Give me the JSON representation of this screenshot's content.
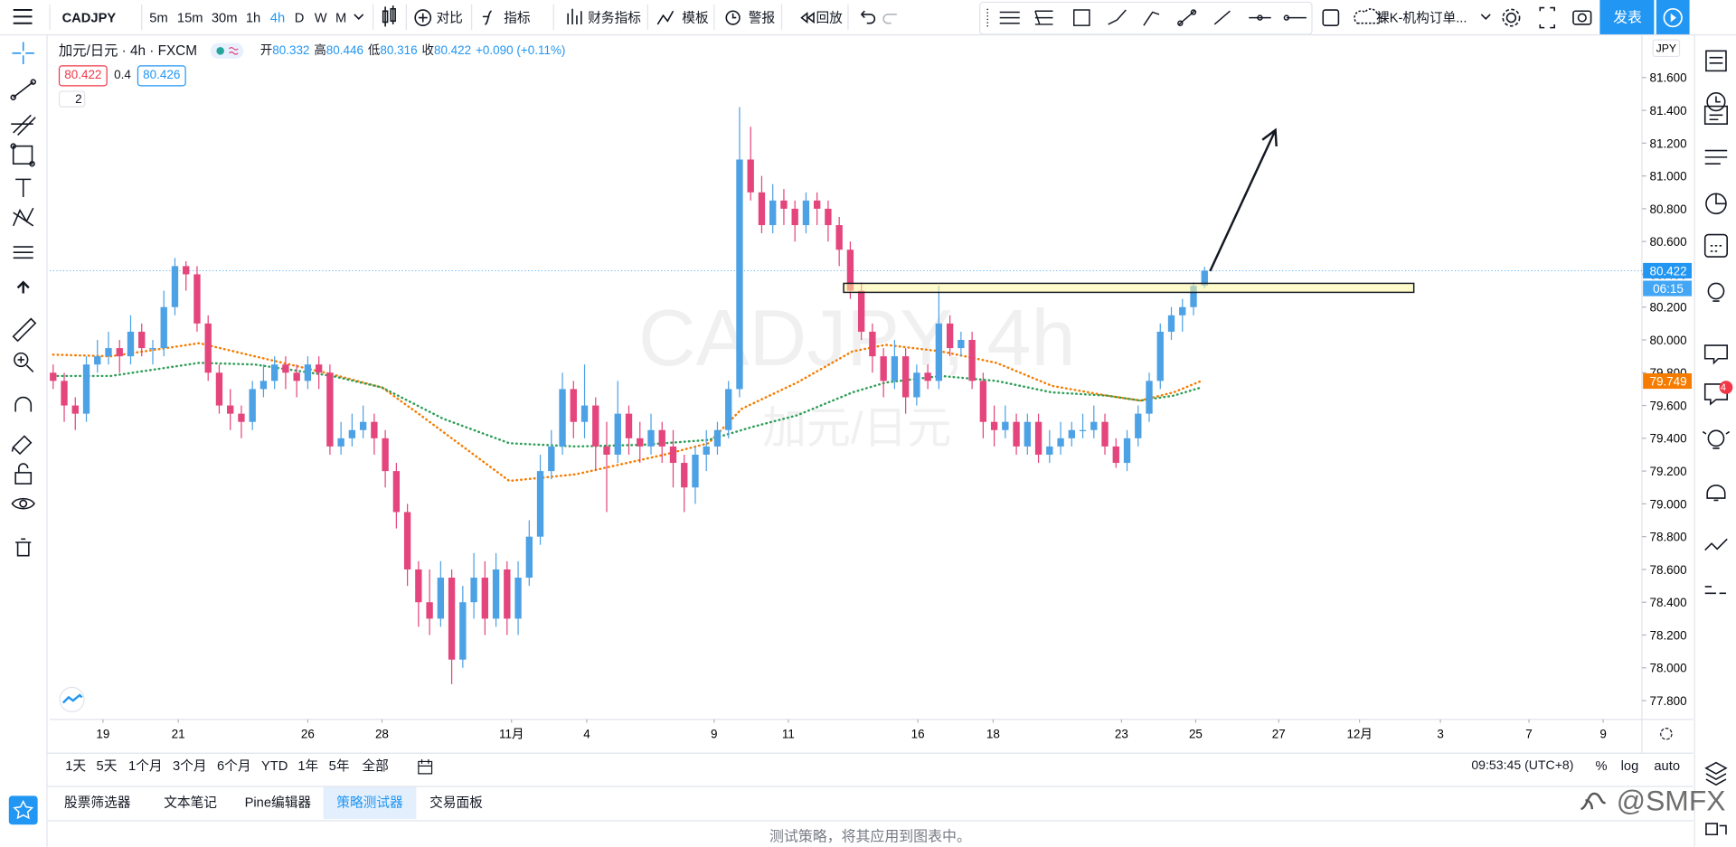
{
  "toolbar": {
    "symbol": "CADJPY",
    "intervals": [
      "5m",
      "15m",
      "30m",
      "1h",
      "4h",
      "D",
      "W",
      "M"
    ],
    "buttons": [
      "对比",
      "指标",
      "财务指标",
      "模板",
      "警报",
      "回放"
    ],
    "layout_name": "裸K-机构订单...",
    "publish": "发表"
  },
  "legend": {
    "title": "加元/日元 · 4h · FXCM",
    "fields": [
      {
        "label": "开",
        "value": "80.332"
      },
      {
        "label": "高",
        "value": "80.446"
      },
      {
        "label": "低",
        "value": "80.316"
      },
      {
        "label": "收",
        "value": "80.422"
      }
    ],
    "change": "+0.090 (+0.11%)",
    "bid": "80.422",
    "spread": "0.4",
    "ask": "80.426",
    "collapsed_count": "2"
  },
  "chart_data": {
    "type": "candlestick",
    "watermark": "CADJPY, 4h",
    "watermark_sub": "加元/日元",
    "currency": "JPY",
    "grid": false,
    "up_color": "#4da1e5",
    "down_color": "#e4457c",
    "xlim": [
      -0.3,
      143.5
    ],
    "ylim": [
      77.685,
      81.857
    ],
    "yticks": [
      {
        "value": 77.8,
        "label": "77.800"
      },
      {
        "value": 78.0,
        "label": "78.000"
      },
      {
        "value": 78.2,
        "label": "78.200"
      },
      {
        "value": 78.4,
        "label": "78.400"
      },
      {
        "value": 78.6,
        "label": "78.600"
      },
      {
        "value": 78.8,
        "label": "78.800"
      },
      {
        "value": 79.0,
        "label": "79.000"
      },
      {
        "value": 79.2,
        "label": "79.200"
      },
      {
        "value": 79.4,
        "label": "79.400"
      },
      {
        "value": 79.6,
        "label": "79.600"
      },
      {
        "value": 79.8,
        "label": "79.800"
      },
      {
        "value": 80.0,
        "label": "80.000"
      },
      {
        "value": 80.2,
        "label": "80.200"
      },
      {
        "value": 80.4,
        "label": "80.400"
      },
      {
        "value": 80.6,
        "label": "80.600"
      },
      {
        "value": 80.8,
        "label": "80.800"
      },
      {
        "value": 81.0,
        "label": "81.000"
      },
      {
        "value": 81.2,
        "label": "81.200"
      },
      {
        "value": 81.4,
        "label": "81.400"
      },
      {
        "value": 81.6,
        "label": "81.600"
      }
    ],
    "xticks": [
      {
        "value": 4.5,
        "label": "19"
      },
      {
        "value": 11.3,
        "label": "21"
      },
      {
        "value": 23,
        "label": "26"
      },
      {
        "value": 29.7,
        "label": "28"
      },
      {
        "value": 41.4,
        "label": "11月"
      },
      {
        "value": 48.2,
        "label": "4"
      },
      {
        "value": 59.7,
        "label": "9"
      },
      {
        "value": 66.4,
        "label": "11"
      },
      {
        "value": 78.1,
        "label": "16"
      },
      {
        "value": 84.9,
        "label": "18"
      },
      {
        "value": 96.5,
        "label": "23"
      },
      {
        "value": 103.2,
        "label": "25"
      },
      {
        "value": 110.7,
        "label": "27"
      },
      {
        "value": 118,
        "label": "12月"
      },
      {
        "value": 125.3,
        "label": "3"
      },
      {
        "value": 133.3,
        "label": "7"
      },
      {
        "value": 140,
        "label": "9"
      }
    ],
    "x": [
      0,
      1,
      2,
      3,
      4,
      5,
      6,
      7,
      8,
      9,
      10,
      11,
      12,
      13,
      14,
      15,
      16,
      17,
      18,
      19,
      20,
      21,
      22,
      23,
      24,
      25,
      26,
      27,
      28,
      29,
      30,
      31,
      32,
      33,
      34,
      35,
      36,
      37,
      38,
      39,
      40,
      41,
      42,
      43,
      44,
      45,
      46,
      47,
      48,
      49,
      50,
      51,
      52,
      53,
      54,
      55,
      56,
      57,
      58,
      59,
      60,
      61,
      62,
      63,
      64,
      65,
      66,
      67,
      68,
      69,
      70,
      71,
      72,
      73,
      74,
      75,
      76,
      77,
      78,
      79,
      80,
      81,
      82,
      83,
      84,
      85,
      86,
      87,
      88,
      89,
      90,
      91,
      92,
      93,
      94,
      95,
      96,
      97,
      98,
      99,
      100,
      101,
      102,
      103,
      104
    ],
    "open": [
      79.8,
      79.75,
      79.6,
      79.55,
      79.85,
      79.9,
      79.95,
      79.9,
      80.05,
      79.95,
      79.95,
      80.2,
      80.45,
      80.4,
      80.1,
      79.8,
      79.6,
      79.55,
      79.5,
      79.7,
      79.75,
      79.85,
      79.8,
      79.75,
      79.85,
      79.8,
      79.35,
      79.4,
      79.45,
      79.5,
      79.4,
      79.2,
      78.95,
      78.6,
      78.4,
      78.3,
      78.55,
      78.05,
      78.4,
      78.55,
      78.3,
      78.6,
      78.3,
      78.55,
      78.8,
      79.2,
      79.35,
      79.7,
      79.5,
      79.6,
      79.35,
      79.3,
      79.55,
      79.4,
      79.35,
      79.45,
      79.35,
      79.25,
      79.1,
      79.3,
      79.35,
      79.45,
      79.7,
      81.1,
      80.9,
      80.7,
      80.85,
      80.8,
      80.7,
      80.85,
      80.8,
      80.7,
      80.55,
      80.3,
      80.05,
      79.9,
      79.75,
      79.9,
      79.65,
      79.8,
      79.75,
      80.1,
      79.95,
      80.0,
      79.75,
      79.5,
      79.45,
      79.5,
      79.35,
      79.5,
      79.3,
      79.35,
      79.4,
      79.45,
      79.45,
      79.5,
      79.35,
      79.25,
      79.4,
      79.55,
      79.75,
      80.05,
      80.15,
      80.2,
      80.332
    ],
    "high": [
      79.85,
      79.8,
      79.65,
      79.9,
      80.0,
      80.05,
      80.0,
      80.15,
      80.1,
      80.0,
      80.3,
      80.5,
      80.48,
      80.45,
      80.15,
      79.85,
      79.7,
      79.6,
      79.75,
      79.85,
      79.9,
      79.9,
      79.85,
      79.9,
      79.9,
      79.85,
      79.5,
      79.55,
      79.6,
      79.55,
      79.45,
      79.25,
      79.0,
      78.65,
      78.6,
      78.65,
      78.6,
      78.5,
      78.7,
      78.65,
      78.7,
      78.65,
      78.65,
      78.9,
      79.3,
      79.45,
      79.8,
      79.75,
      79.85,
      79.65,
      79.5,
      79.75,
      79.6,
      79.5,
      79.55,
      79.5,
      79.45,
      79.3,
      79.35,
      79.45,
      79.5,
      79.75,
      81.42,
      81.3,
      81.0,
      80.95,
      80.92,
      80.85,
      80.9,
      80.9,
      80.85,
      80.75,
      80.6,
      80.35,
      80.1,
      79.95,
      80.0,
      79.95,
      79.85,
      79.85,
      80.33,
      80.15,
      80.05,
      80.05,
      79.8,
      79.6,
      79.6,
      79.55,
      79.55,
      79.55,
      79.45,
      79.5,
      79.5,
      79.55,
      79.6,
      79.55,
      79.4,
      79.45,
      79.6,
      79.8,
      80.1,
      80.2,
      80.25,
      80.35,
      80.446
    ],
    "low": [
      79.7,
      79.5,
      79.45,
      79.5,
      79.8,
      79.85,
      79.8,
      79.85,
      79.9,
      79.85,
      79.9,
      80.15,
      80.3,
      80.05,
      79.75,
      79.55,
      79.45,
      79.4,
      79.45,
      79.65,
      79.7,
      79.7,
      79.65,
      79.7,
      79.7,
      79.3,
      79.3,
      79.35,
      79.4,
      79.3,
      79.1,
      78.85,
      78.5,
      78.25,
      78.2,
      78.25,
      77.9,
      78.0,
      78.3,
      78.2,
      78.25,
      78.2,
      78.2,
      78.5,
      78.75,
      79.15,
      79.3,
      79.4,
      79.4,
      79.2,
      78.95,
      79.25,
      79.3,
      79.25,
      79.3,
      79.25,
      79.1,
      78.95,
      79.0,
      79.2,
      79.3,
      79.4,
      79.65,
      80.85,
      80.65,
      80.65,
      80.7,
      80.6,
      80.65,
      80.7,
      80.6,
      80.45,
      80.25,
      80.0,
      79.8,
      79.65,
      79.7,
      79.55,
      79.6,
      79.7,
      79.7,
      79.9,
      79.9,
      79.7,
      79.4,
      79.35,
      79.4,
      79.3,
      79.3,
      79.25,
      79.25,
      79.3,
      79.35,
      79.4,
      79.4,
      79.3,
      79.22,
      79.2,
      79.35,
      79.5,
      79.7,
      80.0,
      80.05,
      80.15,
      80.316
    ],
    "close": [
      79.75,
      79.6,
      79.55,
      79.85,
      79.9,
      79.95,
      79.9,
      80.05,
      79.95,
      79.95,
      80.2,
      80.45,
      80.4,
      80.1,
      79.8,
      79.6,
      79.55,
      79.5,
      79.7,
      79.75,
      79.85,
      79.8,
      79.75,
      79.85,
      79.8,
      79.35,
      79.4,
      79.45,
      79.5,
      79.4,
      79.2,
      78.95,
      78.6,
      78.4,
      78.3,
      78.55,
      78.05,
      78.4,
      78.55,
      78.3,
      78.6,
      78.3,
      78.55,
      78.8,
      79.2,
      79.35,
      79.7,
      79.5,
      79.6,
      79.35,
      79.3,
      79.55,
      79.4,
      79.35,
      79.45,
      79.35,
      79.25,
      79.1,
      79.3,
      79.35,
      79.45,
      79.7,
      81.1,
      80.9,
      80.7,
      80.85,
      80.8,
      80.7,
      80.85,
      80.8,
      80.7,
      80.55,
      80.3,
      80.05,
      79.9,
      79.75,
      79.9,
      79.65,
      79.8,
      79.75,
      80.1,
      79.95,
      80.0,
      79.75,
      79.5,
      79.45,
      79.5,
      79.35,
      79.5,
      79.3,
      79.35,
      79.4,
      79.45,
      79.45,
      79.5,
      79.35,
      79.25,
      79.4,
      79.55,
      79.75,
      80.05,
      80.15,
      80.2,
      80.33,
      80.422
    ],
    "lines": [
      {
        "color": "#f57c00",
        "x": [
          0,
          5.2,
          13.2,
          18.2,
          25.2,
          29.7,
          33.2,
          37.2,
          41.2,
          44.2,
          47.2,
          51.2,
          55.2,
          59.2,
          62.2,
          67.2,
          72.2,
          75.2,
          80.2,
          85.2,
          90.2,
          95.2,
          98.2,
          101.2,
          103.7
        ],
        "values": [
          79.91,
          79.9,
          79.98,
          79.9,
          79.79,
          79.71,
          79.54,
          79.34,
          79.14,
          79.16,
          79.18,
          79.24,
          79.3,
          79.37,
          79.58,
          79.74,
          79.93,
          79.97,
          79.93,
          79.86,
          79.72,
          79.66,
          79.63,
          79.68,
          79.75
        ]
      },
      {
        "color": "#2e9e57",
        "x": [
          0,
          5.2,
          10.2,
          13.2,
          18.2,
          25.2,
          29.7,
          35.2,
          41.2,
          47.2,
          53.2,
          59.2,
          63.2,
          67.2,
          72.2,
          75.2,
          80.2,
          85.2,
          90.2,
          95.2,
          98.2,
          101.2,
          103.7
        ],
        "values": [
          79.78,
          79.78,
          79.83,
          79.86,
          79.85,
          79.78,
          79.71,
          79.52,
          79.37,
          79.35,
          79.36,
          79.39,
          79.47,
          79.54,
          79.68,
          79.74,
          79.78,
          79.75,
          79.68,
          79.66,
          79.63,
          79.66,
          79.71
        ]
      }
    ],
    "drawings": {
      "zone": {
        "x": [
          71.4,
          122.9
        ],
        "y": [
          80.29,
          80.345
        ]
      },
      "arrow": {
        "x": [
          104.5,
          110.4
        ],
        "y": [
          80.42,
          81.28
        ]
      }
    },
    "price_labels": [
      {
        "value": 80.422,
        "label": "80.422",
        "color": "#2196f3"
      },
      {
        "value": 79.749,
        "label": "79.749",
        "color": "#f57c00"
      }
    ],
    "countdown": "06:15"
  },
  "range_bar": {
    "ranges": [
      "1天",
      "5天",
      "1个月",
      "3个月",
      "6个月",
      "YTD",
      "1年",
      "5年",
      "全部"
    ],
    "time": "09:53:45 (UTC+8)",
    "scale_options": [
      "%",
      "log",
      "auto"
    ]
  },
  "tabs": [
    "股票筛选器",
    "文本笔记",
    "Pine编辑器",
    "策略测试器",
    "交易面板"
  ],
  "footer_message": "测试策略，将其应用到图表中。",
  "sidebar_badge": "4",
  "watermark_handle": "@SMFX"
}
